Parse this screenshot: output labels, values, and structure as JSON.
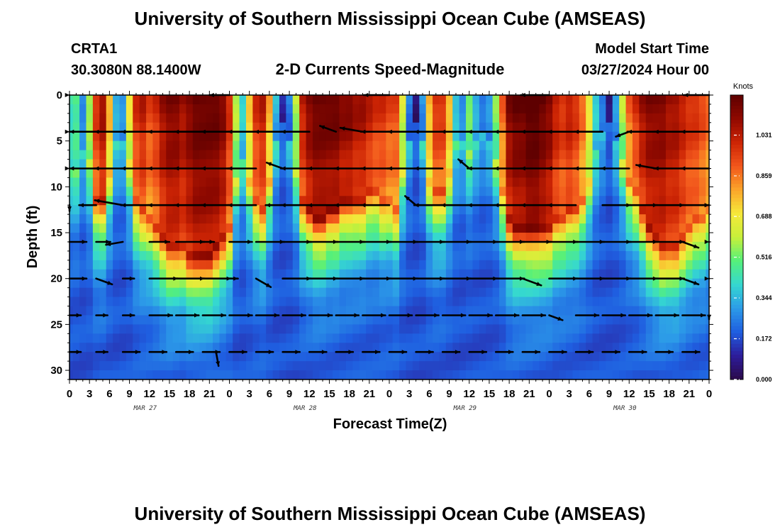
{
  "page": {
    "title": "University of Southern Mississippi Ocean Cube (AMSEAS)",
    "footer_title": "University of Southern Mississippi Ocean Cube (AMSEAS)"
  },
  "header": {
    "station": "CRTA1",
    "coords": "30.3080N  88.1400W",
    "plot_title": "2-D Currents Speed-Magnitude",
    "model_label": "Model Start Time",
    "model_time": "03/27/2024 Hour 00"
  },
  "chart_data": {
    "type": "heatmap",
    "title": "2-D Currents Speed-Magnitude",
    "xlabel": "Forecast Time(Z)",
    "ylabel": "Depth (ft)",
    "x_hours_range": [
      0,
      96
    ],
    "ylim": [
      0,
      31
    ],
    "y_inverted": true,
    "x_tick_labels": [
      "0",
      "3",
      "6",
      "9",
      "12",
      "15",
      "18",
      "21",
      "0",
      "3",
      "6",
      "9",
      "12",
      "15",
      "18",
      "21",
      "0",
      "3",
      "6",
      "9",
      "12",
      "15",
      "18",
      "21",
      "0",
      "3",
      "6",
      "9",
      "12",
      "15",
      "18",
      "21",
      "0"
    ],
    "y_tick_values": [
      0,
      5,
      10,
      15,
      20,
      25,
      30
    ],
    "y_tick_labels": [
      "0",
      "5",
      "10",
      "15",
      "20",
      "25",
      "30"
    ],
    "date_labels": [
      {
        "hour": 12,
        "label": "MAR 27"
      },
      {
        "hour": 36,
        "label": "MAR 28"
      },
      {
        "hour": 60,
        "label": "MAR 29"
      },
      {
        "hour": 84,
        "label": "MAR 30"
      }
    ],
    "colorbar": {
      "units": "Knots",
      "ticks": [
        0.0,
        0.172,
        0.344,
        0.516,
        0.688,
        0.859,
        1.031
      ],
      "tick_labels": [
        "0.000",
        "0.172",
        "0.344",
        "0.516",
        "0.688",
        "0.859",
        "1.031"
      ],
      "range": [
        0,
        1.2
      ],
      "colors": [
        "#2b0a4a",
        "#2d1c9a",
        "#1f5ee0",
        "#2c9be8",
        "#35d8d0",
        "#55f07a",
        "#c8f03a",
        "#f6e83a",
        "#fba52a",
        "#f2561c",
        "#cc2404",
        "#8f0900",
        "#5e0000"
      ]
    },
    "speed_profile": {
      "hours": [
        0,
        1,
        2,
        3,
        4,
        5,
        6,
        7,
        8,
        9,
        10,
        11,
        12,
        13,
        14,
        15,
        16,
        17,
        18,
        19,
        20,
        21,
        22,
        23,
        24,
        25,
        26,
        27,
        28,
        29,
        30,
        31,
        32,
        33,
        34,
        35,
        36,
        37,
        38,
        39,
        40,
        41,
        42,
        43,
        44,
        45,
        46,
        47,
        48,
        49,
        50,
        51,
        52,
        53,
        54,
        55,
        56,
        57,
        58,
        59,
        60,
        61,
        62,
        63,
        64,
        65,
        66,
        67,
        68,
        69,
        70,
        71,
        72,
        73,
        74,
        75,
        76,
        77,
        78,
        79,
        80,
        81,
        82,
        83,
        84,
        85,
        86,
        87,
        88,
        89,
        90,
        91,
        92,
        93,
        94,
        95,
        96
      ],
      "surface_knots": [
        0.45,
        0.5,
        0.3,
        0.6,
        1.0,
        1.1,
        0.8,
        0.35,
        0.3,
        0.7,
        1.0,
        1.05,
        0.95,
        1.0,
        1.1,
        1.15,
        1.15,
        1.1,
        1.15,
        1.2,
        1.2,
        1.2,
        1.2,
        1.15,
        1.0,
        0.6,
        0.4,
        0.75,
        1.0,
        1.05,
        0.8,
        0.35,
        0.1,
        0.25,
        0.6,
        1.05,
        1.15,
        1.2,
        1.2,
        1.2,
        1.2,
        1.15,
        1.15,
        1.1,
        1.1,
        1.05,
        1.0,
        1.0,
        0.95,
        0.95,
        0.65,
        0.25,
        0.05,
        0.3,
        0.8,
        1.0,
        1.0,
        0.8,
        0.4,
        0.3,
        0.55,
        0.35,
        0.25,
        0.3,
        0.55,
        0.9,
        1.15,
        1.2,
        1.2,
        1.25,
        1.25,
        1.2,
        1.15,
        1.05,
        1.0,
        1.05,
        1.0,
        0.9,
        0.7,
        0.4,
        0.25,
        0.05,
        0.3,
        0.6,
        0.9,
        1.0,
        1.1,
        1.15,
        1.15,
        1.15,
        1.1,
        1.1,
        1.05,
        1.0,
        1.0,
        0.95,
        0.9
      ],
      "decay_depth_ft": [
        8,
        8,
        6,
        7,
        11,
        11,
        8,
        5,
        5,
        7,
        11,
        12,
        13,
        14,
        15,
        16,
        16,
        16,
        17,
        17,
        17,
        17,
        16,
        15,
        14,
        9,
        7,
        9,
        11,
        12,
        9,
        5,
        3,
        5,
        8,
        11,
        12,
        13,
        13,
        12,
        12,
        11,
        11,
        11,
        11,
        10,
        10,
        11,
        11,
        12,
        8,
        5,
        3,
        5,
        9,
        10,
        10,
        8,
        5,
        5,
        6,
        5,
        4,
        5,
        7,
        10,
        13,
        14,
        14,
        14,
        14,
        14,
        14,
        13,
        13,
        12,
        12,
        11,
        9,
        6,
        4,
        3,
        5,
        7,
        9,
        10,
        12,
        14,
        15,
        16,
        16,
        16,
        15,
        14,
        13,
        13,
        12
      ]
    },
    "vector_rows_depth_ft": [
      0,
      4,
      8,
      12,
      16,
      20,
      24,
      28
    ],
    "vector_rows": [
      {
        "depth": 0,
        "hours": [
          0,
          24,
          48,
          72,
          96
        ],
        "dir_deg": [
          180,
          180,
          180,
          180,
          180
        ],
        "knots": [
          0.6,
          0.7,
          0.9,
          1.0,
          0.9
        ]
      },
      {
        "depth": 4,
        "hours": [
          0,
          4,
          8,
          12,
          16,
          20,
          24,
          28,
          32,
          36,
          40,
          44,
          48,
          52,
          56,
          60,
          64,
          68,
          72,
          76,
          80,
          84,
          88,
          92,
          96
        ],
        "dir_deg": [
          180,
          180,
          180,
          180,
          180,
          180,
          180,
          180,
          180,
          180,
          200,
          190,
          180,
          180,
          180,
          180,
          180,
          180,
          180,
          180,
          180,
          160,
          180,
          180,
          180
        ],
        "knots": [
          1.0,
          1.0,
          1.0,
          1.0,
          1.0,
          1.0,
          1.0,
          1.0,
          1.0,
          1.0,
          0.6,
          0.8,
          1.0,
          1.0,
          1.0,
          1.0,
          1.0,
          1.0,
          1.0,
          1.0,
          1.0,
          0.5,
          1.0,
          1.0,
          1.0
        ]
      },
      {
        "depth": 8,
        "hours": [
          0,
          4,
          8,
          12,
          16,
          20,
          24,
          28,
          32,
          36,
          40,
          44,
          48,
          52,
          56,
          60,
          64,
          68,
          72,
          76,
          80,
          84,
          88,
          92,
          96
        ],
        "dir_deg": [
          180,
          180,
          180,
          180,
          180,
          180,
          180,
          180,
          200,
          180,
          180,
          180,
          180,
          180,
          180,
          220,
          180,
          180,
          180,
          180,
          180,
          180,
          190,
          180,
          180
        ],
        "knots": [
          1.0,
          1.0,
          1.0,
          1.0,
          1.0,
          1.0,
          1.0,
          1.0,
          0.6,
          1.0,
          1.0,
          1.0,
          1.0,
          1.0,
          1.0,
          0.5,
          1.0,
          1.0,
          1.0,
          1.0,
          1.0,
          1.0,
          0.7,
          1.0,
          1.0
        ]
      },
      {
        "depth": 12,
        "hours": [
          0,
          4,
          8,
          12,
          16,
          20,
          24,
          28,
          32,
          36,
          40,
          44,
          48,
          52,
          56,
          60,
          64,
          68,
          72,
          76,
          80,
          84,
          88,
          92,
          96
        ],
        "dir_deg": [
          160,
          180,
          190,
          180,
          180,
          180,
          180,
          180,
          180,
          180,
          180,
          180,
          180,
          220,
          180,
          180,
          180,
          180,
          180,
          180,
          0,
          0,
          0,
          0,
          0
        ],
        "knots": [
          0.6,
          0.6,
          1.0,
          1.0,
          1.0,
          1.0,
          1.0,
          1.0,
          0.6,
          1.0,
          1.0,
          1.0,
          1.0,
          0.5,
          1.0,
          1.0,
          1.0,
          1.0,
          1.0,
          1.0,
          1.0,
          1.0,
          1.0,
          1.0,
          1.0
        ]
      },
      {
        "depth": 16,
        "hours": [
          0,
          4,
          8,
          12,
          16,
          20,
          24,
          28,
          32,
          36,
          40,
          44,
          48,
          52,
          56,
          60,
          64,
          68,
          72,
          76,
          80,
          84,
          88,
          92,
          96
        ],
        "dir_deg": [
          0,
          0,
          170,
          0,
          0,
          0,
          0,
          0,
          0,
          0,
          0,
          0,
          0,
          0,
          0,
          0,
          0,
          0,
          0,
          0,
          0,
          0,
          0,
          20,
          0
        ],
        "knots": [
          0.6,
          0.5,
          0.6,
          0.7,
          1.0,
          0.4,
          0.8,
          1.0,
          1.0,
          1.0,
          1.0,
          1.0,
          1.0,
          1.0,
          1.0,
          1.0,
          1.0,
          1.0,
          1.0,
          1.0,
          1.0,
          1.0,
          1.0,
          0.6,
          1.0
        ]
      },
      {
        "depth": 20,
        "hours": [
          0,
          4,
          8,
          12,
          16,
          20,
          24,
          28,
          32,
          36,
          40,
          44,
          48,
          52,
          56,
          60,
          64,
          68,
          72,
          76,
          80,
          84,
          88,
          92,
          96
        ],
        "dir_deg": [
          0,
          20,
          0,
          0,
          0,
          0,
          0,
          30,
          0,
          0,
          0,
          0,
          0,
          0,
          0,
          0,
          0,
          20,
          0,
          0,
          0,
          0,
          0,
          20,
          0
        ],
        "knots": [
          0.6,
          0.6,
          0.4,
          1.0,
          1.0,
          1.0,
          0.3,
          0.6,
          1.0,
          1.0,
          1.0,
          1.0,
          1.0,
          1.0,
          1.0,
          1.0,
          1.0,
          0.7,
          1.0,
          1.0,
          1.0,
          1.0,
          1.0,
          0.6,
          1.0
        ]
      },
      {
        "depth": 24,
        "hours": [
          0,
          4,
          8,
          12,
          16,
          20,
          24,
          28,
          32,
          36,
          40,
          44,
          48,
          52,
          56,
          60,
          64,
          68,
          72,
          76,
          80,
          84,
          88,
          92,
          96
        ],
        "dir_deg": [
          0,
          0,
          0,
          0,
          0,
          0,
          0,
          0,
          0,
          0,
          0,
          0,
          0,
          0,
          0,
          0,
          0,
          0,
          20,
          0,
          0,
          0,
          0,
          0,
          10
        ],
        "knots": [
          0.4,
          0.4,
          0.4,
          0.8,
          0.8,
          0.8,
          0.8,
          0.8,
          0.8,
          0.8,
          0.8,
          0.8,
          0.8,
          0.8,
          0.8,
          0.8,
          0.8,
          0.8,
          0.5,
          0.8,
          0.8,
          0.8,
          0.8,
          0.8,
          0.8
        ]
      },
      {
        "depth": 28,
        "hours": [
          0,
          4,
          8,
          12,
          16,
          20,
          22,
          24,
          28,
          32,
          36,
          40,
          44,
          48,
          52,
          56,
          60,
          64,
          68,
          72,
          76,
          80,
          84,
          88,
          92
        ],
        "dir_deg": [
          0,
          0,
          0,
          0,
          0,
          0,
          80,
          0,
          0,
          0,
          0,
          0,
          0,
          0,
          0,
          0,
          0,
          0,
          0,
          0,
          0,
          0,
          0,
          0,
          0
        ],
        "knots": [
          0.4,
          0.4,
          0.6,
          0.6,
          0.6,
          0.6,
          0.5,
          0.6,
          0.6,
          0.6,
          0.6,
          0.6,
          0.6,
          0.6,
          0.6,
          0.6,
          0.6,
          0.6,
          0.6,
          0.6,
          0.6,
          0.6,
          0.6,
          0.6,
          0.6
        ]
      }
    ]
  }
}
